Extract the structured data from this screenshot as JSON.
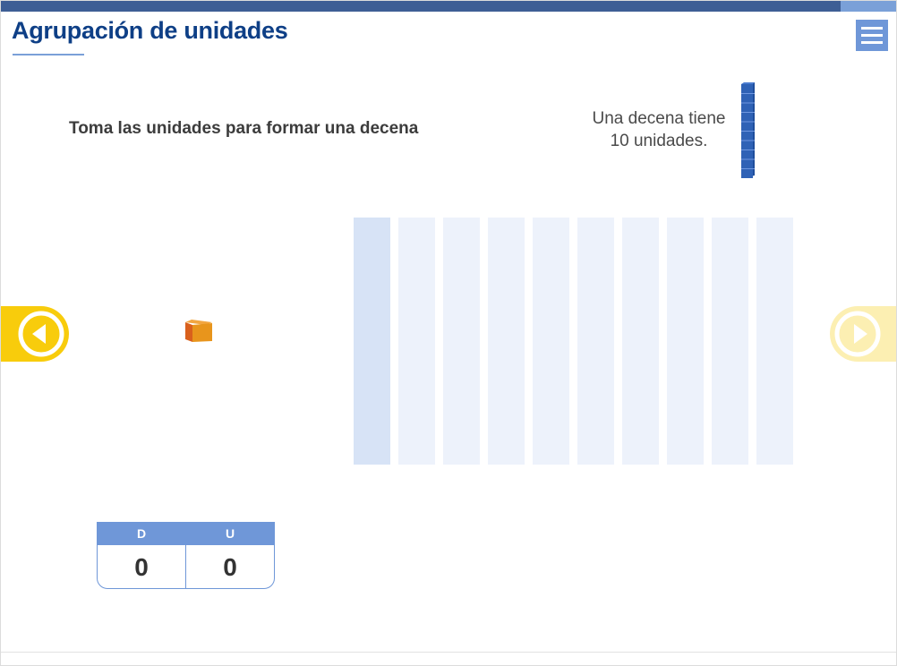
{
  "header": {
    "title": "Agrupación de unidades",
    "menu_icon": "hamburger-menu-icon"
  },
  "activity": {
    "instruction": "Toma las unidades para formar una decena",
    "info": {
      "line1": "Una decena tiene",
      "line2": "10 unidades."
    },
    "board_slots": 10,
    "active_slot": 1,
    "cube_icon": "unit-cube-icon",
    "rod_icon": "ten-rod-icon"
  },
  "navigation": {
    "prev_icon": "arrow-left-circle-icon",
    "next_icon": "arrow-right-circle-icon"
  },
  "counter": {
    "tens_label": "D",
    "units_label": "U",
    "tens_value": "0",
    "units_value": "0"
  },
  "colors": {
    "title": "#0e3f86",
    "accent": "#6f97d8",
    "nav_yellow": "#f8cc0c",
    "nav_yellow_disabled": "#fcefb2",
    "slot": "#edf2fb",
    "slot_active": "#d7e3f6",
    "cube_orange": "#e8951c",
    "rod_blue": "#2f62b6"
  }
}
